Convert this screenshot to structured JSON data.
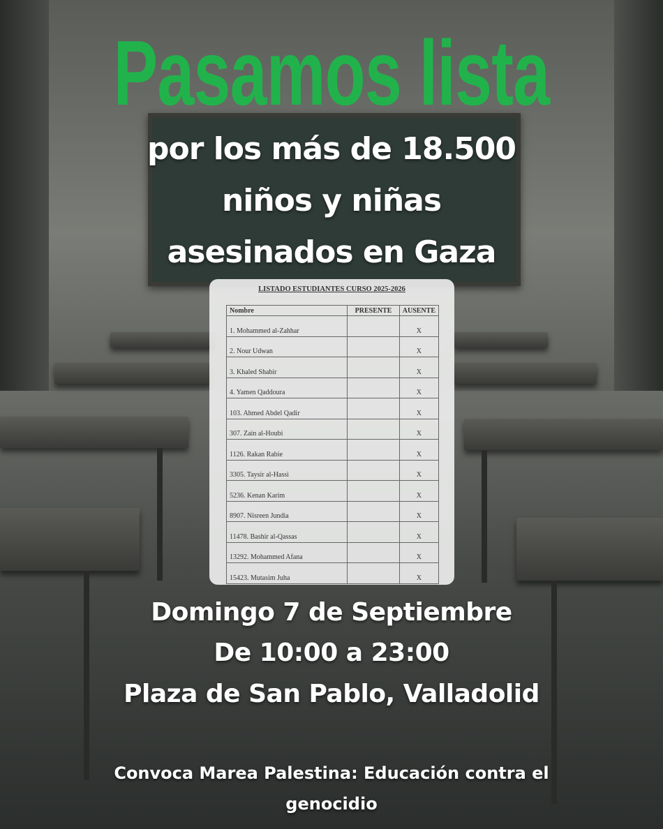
{
  "title": "Pasamos lista",
  "subtitle": [
    "por los más de 18.500",
    "niños y niñas",
    "asesinados en Gaza"
  ],
  "list": {
    "heading": "LISTADO ESTUDIANTES CURSO 2025-2026",
    "columns": [
      "Nombre",
      "PRESENTE",
      "AUSENTE"
    ],
    "rows": [
      {
        "name": "1. Mohammed al-Zahhar",
        "presente": "",
        "ausente": "X"
      },
      {
        "name": "2. Nour Udwan",
        "presente": "",
        "ausente": "X"
      },
      {
        "name": "3. Khaled Shabir",
        "presente": "",
        "ausente": "X"
      },
      {
        "name": "4. Yamen Qaddoura",
        "presente": "",
        "ausente": "X"
      },
      {
        "name": "103. Ahmed Abdel Qadir",
        "presente": "",
        "ausente": "X"
      },
      {
        "name": "307. Zain al-Houbi",
        "presente": "",
        "ausente": "X"
      },
      {
        "name": "1126. Rakan Rabie",
        "presente": "",
        "ausente": "X"
      },
      {
        "name": "3305. Taysir al-Hassi",
        "presente": "",
        "ausente": "X"
      },
      {
        "name": "5236. Kenan Karim",
        "presente": "",
        "ausente": "X"
      },
      {
        "name": "8907. Nisreen Jundia",
        "presente": "",
        "ausente": "X"
      },
      {
        "name": "11478. Bashir al-Qassas",
        "presente": "",
        "ausente": "X"
      },
      {
        "name": "13292. Mohammed Afana",
        "presente": "",
        "ausente": "X"
      },
      {
        "name": "15423. Mutasim Juha",
        "presente": "",
        "ausente": "X"
      }
    ]
  },
  "event": {
    "date": "Domingo 7 de Septiembre",
    "time": "De 10:00 a 23:00",
    "place": "Plaza de San Pablo, Valladolid"
  },
  "organizer": [
    "Convoca Marea Palestina: Educación contra el",
    "genocidio"
  ],
  "colors": {
    "title": "#22b24c",
    "text": "#ffffff"
  }
}
